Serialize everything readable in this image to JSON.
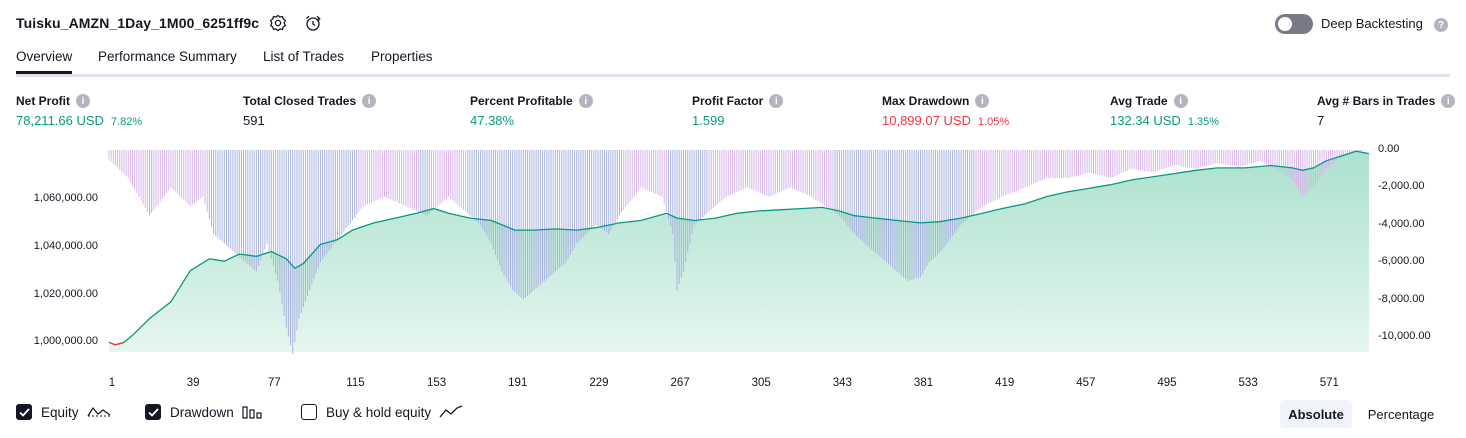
{
  "header": {
    "title": "Tuisku_AMZN_1Day_1M00_6251ff9c",
    "deep_backtesting_label": "Deep Backtesting"
  },
  "tabs": [
    {
      "label": "Overview"
    },
    {
      "label": "Performance Summary"
    },
    {
      "label": "List of Trades"
    },
    {
      "label": "Properties"
    }
  ],
  "metrics": [
    {
      "label": "Net Profit",
      "value": "78,211.66 USD",
      "pct": "7.82%",
      "status": "positive"
    },
    {
      "label": "Total Closed Trades",
      "value": "591",
      "pct": "",
      "status": "neutral"
    },
    {
      "label": "Percent Profitable",
      "value": "47.38%",
      "pct": "",
      "status": "positive"
    },
    {
      "label": "Profit Factor",
      "value": "1.599",
      "pct": "",
      "status": "positive"
    },
    {
      "label": "Max Drawdown",
      "value": "10,899.07 USD",
      "pct": "1.05%",
      "status": "negative"
    },
    {
      "label": "Avg Trade",
      "value": "132.34 USD",
      "pct": "1.35%",
      "status": "positive"
    },
    {
      "label": "Avg # Bars in Trades",
      "value": "7",
      "pct": "",
      "status": "neutral"
    }
  ],
  "legend": {
    "equity_label": "Equity",
    "drawdown_label": "Drawdown",
    "buy_hold_label": "Buy & hold equity",
    "equity_checked": true,
    "drawdown_checked": true,
    "buy_hold_checked": false
  },
  "view_buttons": {
    "absolute": "Absolute",
    "percentage": "Percentage",
    "selected": "absolute"
  },
  "colors": {
    "positive": "#089981",
    "negative": "#f23645",
    "equity_fill": "#bfe8dc",
    "drawdown_bar": "#d6b5ea",
    "drawdown_bar_deep": "#a9b3e0"
  },
  "chart_data": {
    "type": "area",
    "left_axis": {
      "ticks": [
        1000000,
        1020000,
        1040000,
        1060000
      ],
      "tick_labels": [
        "1,000,000.00",
        "1,020,000.00",
        "1,040,000.00",
        "1,060,000.00"
      ],
      "range": [
        996000,
        1080500
      ]
    },
    "right_axis": {
      "ticks": [
        0,
        -2000,
        -4000,
        -6000,
        -8000,
        -10000
      ],
      "tick_labels": [
        "0.00",
        "-2,000.00",
        "-4,000.00",
        "-6,000.00",
        "-8,000.00",
        "-10,000.00"
      ],
      "range": [
        -10800,
        0
      ]
    },
    "x_ticks": [
      "1",
      "39",
      "77",
      "115",
      "153",
      "191",
      "229",
      "267",
      "305",
      "343",
      "381",
      "419",
      "457",
      "495",
      "533",
      "571"
    ],
    "x_range": [
      1,
      591
    ],
    "series": [
      {
        "name": "Equity",
        "x": [
          1,
          4,
          8,
          12,
          20,
          30,
          39,
          48,
          55,
          62,
          70,
          77,
          84,
          88,
          92,
          95,
          100,
          108,
          115,
          125,
          135,
          145,
          153,
          160,
          170,
          180,
          191,
          200,
          210,
          220,
          229,
          240,
          250,
          258,
          262,
          267,
          275,
          285,
          295,
          305,
          315,
          325,
          335,
          343,
          350,
          360,
          370,
          381,
          390,
          400,
          410,
          419,
          430,
          440,
          450,
          457,
          470,
          480,
          495,
          510,
          520,
          533,
          545,
          555,
          560,
          565,
          571,
          578,
          585,
          591
        ],
        "y": [
          1000000,
          999000,
          1000000,
          1003000,
          1010000,
          1017000,
          1030000,
          1035000,
          1034000,
          1037000,
          1036000,
          1038000,
          1035000,
          1031000,
          1033000,
          1036000,
          1041000,
          1043000,
          1047000,
          1050000,
          1052000,
          1054000,
          1056000,
          1054000,
          1052000,
          1051000,
          1047000,
          1047000,
          1047500,
          1047000,
          1048000,
          1050000,
          1051000,
          1053000,
          1054000,
          1052000,
          1051000,
          1052000,
          1054000,
          1055000,
          1055500,
          1056000,
          1056500,
          1055000,
          1053000,
          1052000,
          1051000,
          1050000,
          1050500,
          1052000,
          1054000,
          1056000,
          1058000,
          1061000,
          1063000,
          1064000,
          1066000,
          1068000,
          1070000,
          1072000,
          1073000,
          1073000,
          1074000,
          1073000,
          1072000,
          1073000,
          1076000,
          1078000,
          1080000,
          1079000
        ]
      },
      {
        "name": "Drawdown",
        "x": [
          1,
          10,
          20,
          30,
          39,
          45,
          50,
          55,
          60,
          65,
          70,
          75,
          80,
          84,
          87,
          90,
          95,
          100,
          110,
          120,
          130,
          140,
          150,
          160,
          170,
          175,
          180,
          185,
          190,
          195,
          200,
          205,
          210,
          215,
          220,
          229,
          235,
          240,
          250,
          260,
          265,
          267,
          270,
          275,
          280,
          290,
          300,
          310,
          320,
          330,
          343,
          350,
          360,
          370,
          375,
          381,
          385,
          390,
          400,
          410,
          419,
          430,
          440,
          450,
          460,
          470,
          480,
          490,
          500,
          510,
          520,
          530,
          540,
          550,
          555,
          560,
          565,
          571,
          578,
          585,
          591
        ],
        "y": [
          -500,
          -1500,
          -3500,
          -2000,
          -3000,
          -2500,
          -4500,
          -5000,
          -5500,
          -6000,
          -6500,
          -5000,
          -7000,
          -9500,
          -10899,
          -9000,
          -7500,
          -6000,
          -4500,
          -3000,
          -2500,
          -3000,
          -3500,
          -2500,
          -3500,
          -4000,
          -5000,
          -6500,
          -7500,
          -8000,
          -7500,
          -7000,
          -6500,
          -6000,
          -5000,
          -4000,
          -4500,
          -3500,
          -2000,
          -2500,
          -4500,
          -7500,
          -6500,
          -4000,
          -3500,
          -2500,
          -2000,
          -2500,
          -2000,
          -2500,
          -3500,
          -4500,
          -5500,
          -6500,
          -7000,
          -6800,
          -6000,
          -5500,
          -4000,
          -3000,
          -2500,
          -2000,
          -1500,
          -1500,
          -1200,
          -1500,
          -1000,
          -1200,
          -800,
          -1000,
          -700,
          -900,
          -600,
          -1200,
          -1600,
          -2500,
          -2000,
          -1000,
          -400,
          -100,
          0
        ]
      }
    ]
  }
}
